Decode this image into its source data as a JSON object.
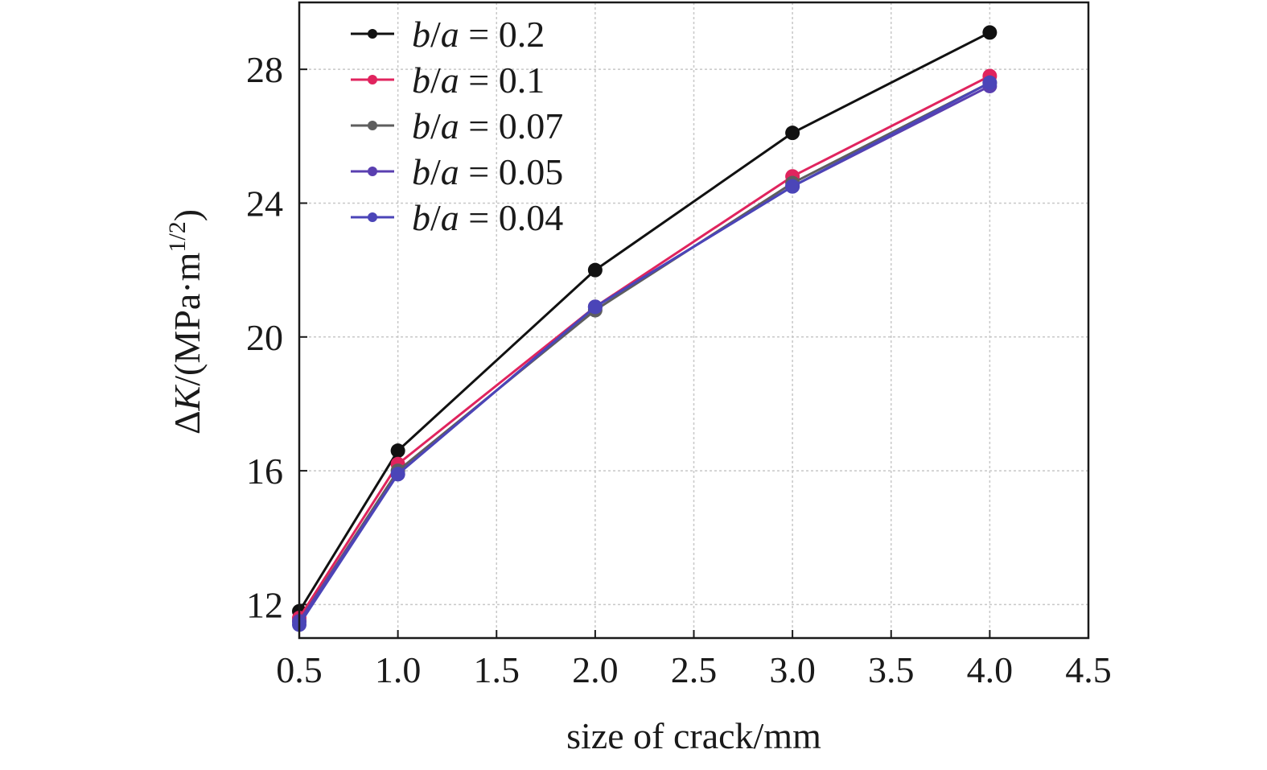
{
  "chart_data": {
    "type": "line",
    "xlabel": "size of crack/mm",
    "ylabel": {
      "prefix": "Δ",
      "var": "K",
      "unit": "/(MPa·m",
      "exp": "1/2",
      "close": ")"
    },
    "xlim": [
      0.5,
      4.5
    ],
    "ylim": [
      11,
      30
    ],
    "x_ticks": [
      "0.5",
      "1.0",
      "1.5",
      "2.0",
      "2.5",
      "3.0",
      "3.5",
      "4.0",
      "4.5"
    ],
    "y_ticks": [
      "12",
      "16",
      "20",
      "24",
      "28"
    ],
    "grid": true,
    "legend_position": "top-left",
    "x": [
      0.5,
      1.0,
      2.0,
      3.0,
      4.0
    ],
    "series": [
      {
        "name": "b/a = 0.2",
        "name_parts": {
          "b": "b",
          "sep": "/",
          "a": "a",
          "rest": " = 0.2"
        },
        "color": "#111111",
        "values": [
          11.8,
          16.6,
          22.0,
          26.1,
          29.1
        ]
      },
      {
        "name": "b/a = 0.1",
        "name_parts": {
          "b": "b",
          "sep": "/",
          "a": "a",
          "rest": " = 0.1"
        },
        "color": "#e0245e",
        "values": [
          11.6,
          16.2,
          20.9,
          24.8,
          27.8
        ]
      },
      {
        "name": "b/a = 0.07",
        "name_parts": {
          "b": "b",
          "sep": "/",
          "a": "a",
          "rest": " = 0.07"
        },
        "color": "#5e5e5e",
        "values": [
          11.5,
          16.0,
          20.8,
          24.6,
          27.6
        ]
      },
      {
        "name": "b/a = 0.05",
        "name_parts": {
          "b": "b",
          "sep": "/",
          "a": "a",
          "rest": " = 0.05"
        },
        "color": "#5a3fb0",
        "values": [
          11.5,
          15.9,
          20.9,
          24.5,
          27.5
        ]
      },
      {
        "name": "b/a = 0.04",
        "name_parts": {
          "b": "b",
          "sep": "/",
          "a": "a",
          "rest": " = 0.04"
        },
        "color": "#4b45b8",
        "values": [
          11.4,
          15.9,
          20.9,
          24.5,
          27.6
        ]
      }
    ]
  }
}
